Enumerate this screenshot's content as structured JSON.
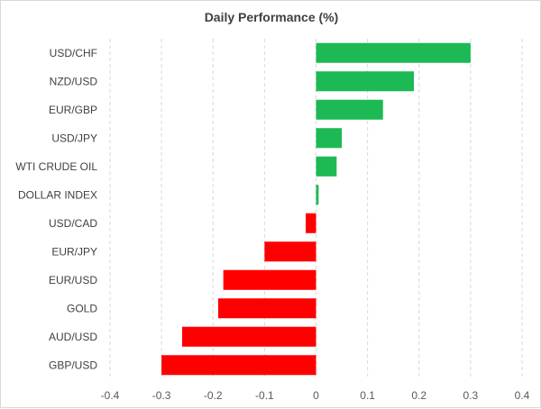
{
  "chart_data": {
    "type": "bar",
    "orientation": "horizontal",
    "title": "Daily Performance (%)",
    "xlabel": "",
    "ylabel": "",
    "xlim": [
      -0.4,
      0.4
    ],
    "xticks": [
      "-0.4",
      "-0.3",
      "-0.2",
      "-0.1",
      "0",
      "0.1",
      "0.2",
      "0.3",
      "0.4"
    ],
    "grid": "vertical-dashed",
    "legend": "none",
    "categories": [
      "USD/CHF",
      "NZD/USD",
      "EUR/GBP",
      "USD/JPY",
      "WTI CRUDE OIL",
      "DOLLAR INDEX",
      "USD/CAD",
      "EUR/JPY",
      "EUR/USD",
      "GOLD",
      "AUD/USD",
      "GBP/USD"
    ],
    "values": [
      0.3,
      0.19,
      0.13,
      0.05,
      0.04,
      0.005,
      -0.02,
      -0.1,
      -0.18,
      -0.19,
      -0.26,
      -0.3
    ],
    "colors": {
      "positive": "#1db954",
      "negative": "#ff0000",
      "grid": "#d9d9d9"
    }
  }
}
